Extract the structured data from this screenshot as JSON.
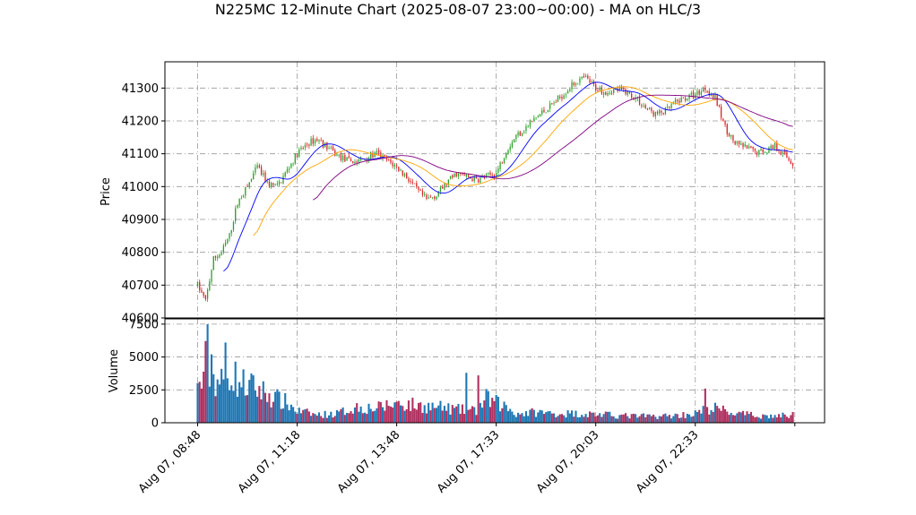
{
  "chart_data": {
    "type": "candlestick",
    "title": "N225MC 12-Minute Chart (2025-08-07 23:00~00:00) - MA on HLC/3",
    "price_axis": {
      "label": "Price",
      "ticks": [
        40600,
        40700,
        40800,
        40900,
        41000,
        41100,
        41200,
        41300
      ],
      "ylim": [
        40600,
        41380
      ]
    },
    "volume_axis": {
      "label": "Volume",
      "ticks": [
        0,
        2500,
        5000,
        7500
      ],
      "ylim": [
        0,
        7900
      ]
    },
    "x_axis": {
      "ticks": [
        "Aug 07, 08:48",
        "Aug 07, 11:18",
        "Aug 07, 13:48",
        "Aug 07, 17:33",
        "Aug 07, 20:03",
        "Aug 07, 22:33"
      ],
      "bars_per_tick": 50,
      "n_bars": 300
    },
    "grid": true,
    "colors": {
      "up": "#2ca02c",
      "down": "#d62728",
      "ma_fast": "#0000ff",
      "ma_mid": "#ffa500",
      "ma_slow": "#800080",
      "vol_up": "#1f77b4",
      "vol_down": "#b03060",
      "grid": "#999999"
    },
    "price_path": [
      [
        0,
        40700
      ],
      [
        4,
        40650
      ],
      [
        8,
        40780
      ],
      [
        12,
        40800
      ],
      [
        16,
        40850
      ],
      [
        20,
        40950
      ],
      [
        25,
        41000
      ],
      [
        30,
        41060
      ],
      [
        35,
        41010
      ],
      [
        40,
        41000
      ],
      [
        45,
        41050
      ],
      [
        50,
        41100
      ],
      [
        55,
        41130
      ],
      [
        60,
        41145
      ],
      [
        65,
        41120
      ],
      [
        70,
        41095
      ],
      [
        75,
        41080
      ],
      [
        80,
        41075
      ],
      [
        85,
        41090
      ],
      [
        90,
        41100
      ],
      [
        95,
        41080
      ],
      [
        100,
        41060
      ],
      [
        105,
        41030
      ],
      [
        110,
        40990
      ],
      [
        115,
        40960
      ],
      [
        120,
        40975
      ],
      [
        125,
        41010
      ],
      [
        130,
        41040
      ],
      [
        135,
        41030
      ],
      [
        140,
        41020
      ],
      [
        145,
        41030
      ],
      [
        150,
        41040
      ],
      [
        155,
        41110
      ],
      [
        160,
        41155
      ],
      [
        165,
        41180
      ],
      [
        170,
        41210
      ],
      [
        175,
        41235
      ],
      [
        180,
        41260
      ],
      [
        185,
        41290
      ],
      [
        190,
        41320
      ],
      [
        195,
        41330
      ],
      [
        200,
        41300
      ],
      [
        205,
        41290
      ],
      [
        210,
        41295
      ],
      [
        215,
        41290
      ],
      [
        220,
        41270
      ],
      [
        225,
        41240
      ],
      [
        230,
        41220
      ],
      [
        235,
        41230
      ],
      [
        240,
        41255
      ],
      [
        245,
        41270
      ],
      [
        250,
        41280
      ],
      [
        255,
        41300
      ],
      [
        260,
        41270
      ],
      [
        265,
        41180
      ],
      [
        270,
        41130
      ],
      [
        275,
        41120
      ],
      [
        280,
        41105
      ],
      [
        285,
        41110
      ],
      [
        290,
        41125
      ],
      [
        295,
        41095
      ],
      [
        299,
        41070
      ]
    ],
    "volume_profile": [
      [
        0,
        2500
      ],
      [
        4,
        4500
      ],
      [
        8,
        3500
      ],
      [
        12,
        3000
      ],
      [
        16,
        4000
      ],
      [
        20,
        3200
      ],
      [
        25,
        2800
      ],
      [
        30,
        2600
      ],
      [
        35,
        2200
      ],
      [
        40,
        1800
      ],
      [
        45,
        1500
      ],
      [
        50,
        900
      ],
      [
        60,
        600
      ],
      [
        70,
        700
      ],
      [
        80,
        1200
      ],
      [
        90,
        1100
      ],
      [
        100,
        1500
      ],
      [
        110,
        1300
      ],
      [
        120,
        1200
      ],
      [
        130,
        1000
      ],
      [
        140,
        900
      ],
      [
        145,
        1800
      ],
      [
        150,
        1500
      ],
      [
        155,
        1200
      ],
      [
        160,
        700
      ],
      [
        170,
        800
      ],
      [
        180,
        700
      ],
      [
        190,
        700
      ],
      [
        200,
        650
      ],
      [
        210,
        550
      ],
      [
        220,
        500
      ],
      [
        230,
        500
      ],
      [
        240,
        550
      ],
      [
        250,
        700
      ],
      [
        255,
        1000
      ],
      [
        260,
        1100
      ],
      [
        270,
        700
      ],
      [
        280,
        550
      ],
      [
        290,
        500
      ],
      [
        299,
        600
      ]
    ]
  }
}
